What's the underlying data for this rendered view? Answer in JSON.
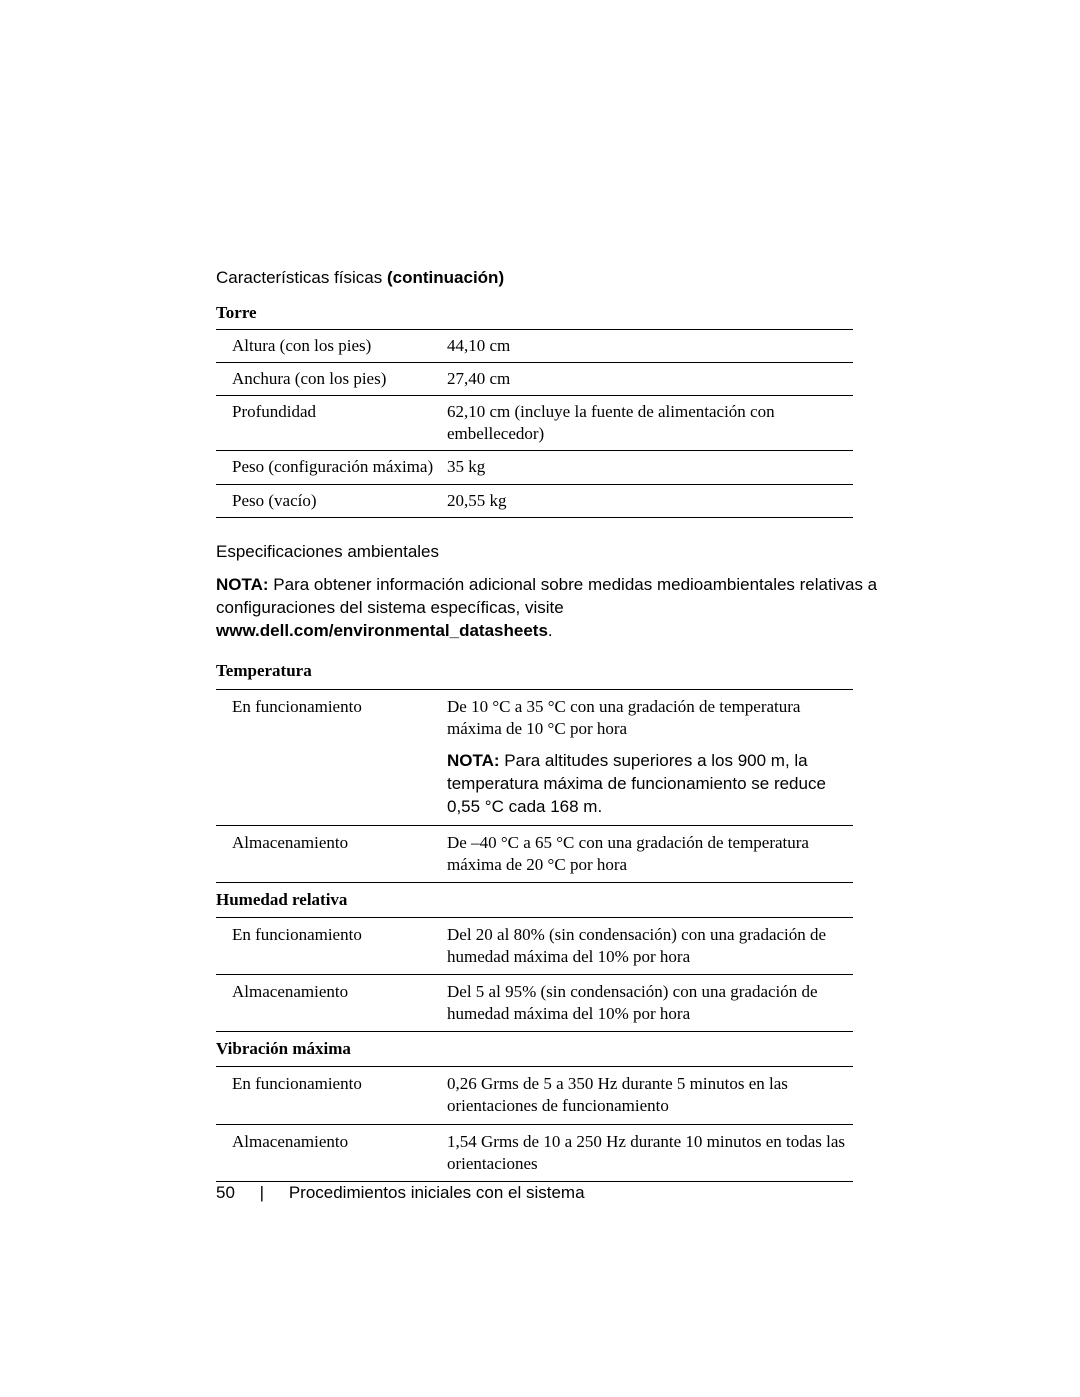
{
  "physical": {
    "title": "Características físicas",
    "continuation": "(continuación)",
    "category": "Torre",
    "rows": [
      {
        "label": "Altura (con los pies)",
        "value": "44,10 cm"
      },
      {
        "label": "Anchura (con los pies)",
        "value": "27,40 cm"
      },
      {
        "label": "Profundidad",
        "value": "62,10 cm (incluye la fuente de alimentación con embellecedor)"
      },
      {
        "label": "Peso (configuración máxima)",
        "value": "35 kg"
      },
      {
        "label": "Peso (vacío)",
        "value": "20,55 kg"
      }
    ]
  },
  "env": {
    "title": "Especificaciones ambientales",
    "nota_label": "NOTA:",
    "nota_text": "Para obtener información adicional sobre medidas medioambientales relativas a configuraciones del sistema específicas, visite ",
    "nota_url": "www.dell.com/environmental_datasheets",
    "nota_period": ".",
    "temp": {
      "category": "Temperatura",
      "operating_label": "En funcionamiento",
      "operating_value": "De 10 °C a 35 °C con una gradación de temperatura máxima de 10 °C por hora",
      "operating_nota_label": "NOTA:",
      "operating_nota_text": "Para altitudes superiores a los 900 m, la temperatura máxima de funcionamiento se reduce 0,55 °C cada 168 m.",
      "storage_label": "Almacenamiento",
      "storage_value": "De –40 °C a 65 °C con una gradación de temperatura máxima de 20 °C por hora"
    },
    "humidity": {
      "category": "Humedad relativa",
      "operating_label": "En funcionamiento",
      "operating_value": "Del 20 al 80% (sin condensación) con una gradación de humedad máxima del 10% por hora",
      "storage_label": "Almacenamiento",
      "storage_value": "Del 5 al 95% (sin condensación) con una gradación de humedad máxima del 10% por hora"
    },
    "vibration": {
      "category": "Vibración máxima",
      "operating_label": "En funcionamiento",
      "operating_value": "0,26 Grms de 5 a 350 Hz durante 5 minutos en las orientaciones de funcionamiento",
      "storage_label": "Almacenamiento",
      "storage_value": "1,54 Grms de 10 a 250 Hz durante 10 minutos en todas las orientaciones"
    }
  },
  "footer": {
    "page": "50",
    "separator": "|",
    "title": "Procedimientos iniciales con el sistema"
  }
}
